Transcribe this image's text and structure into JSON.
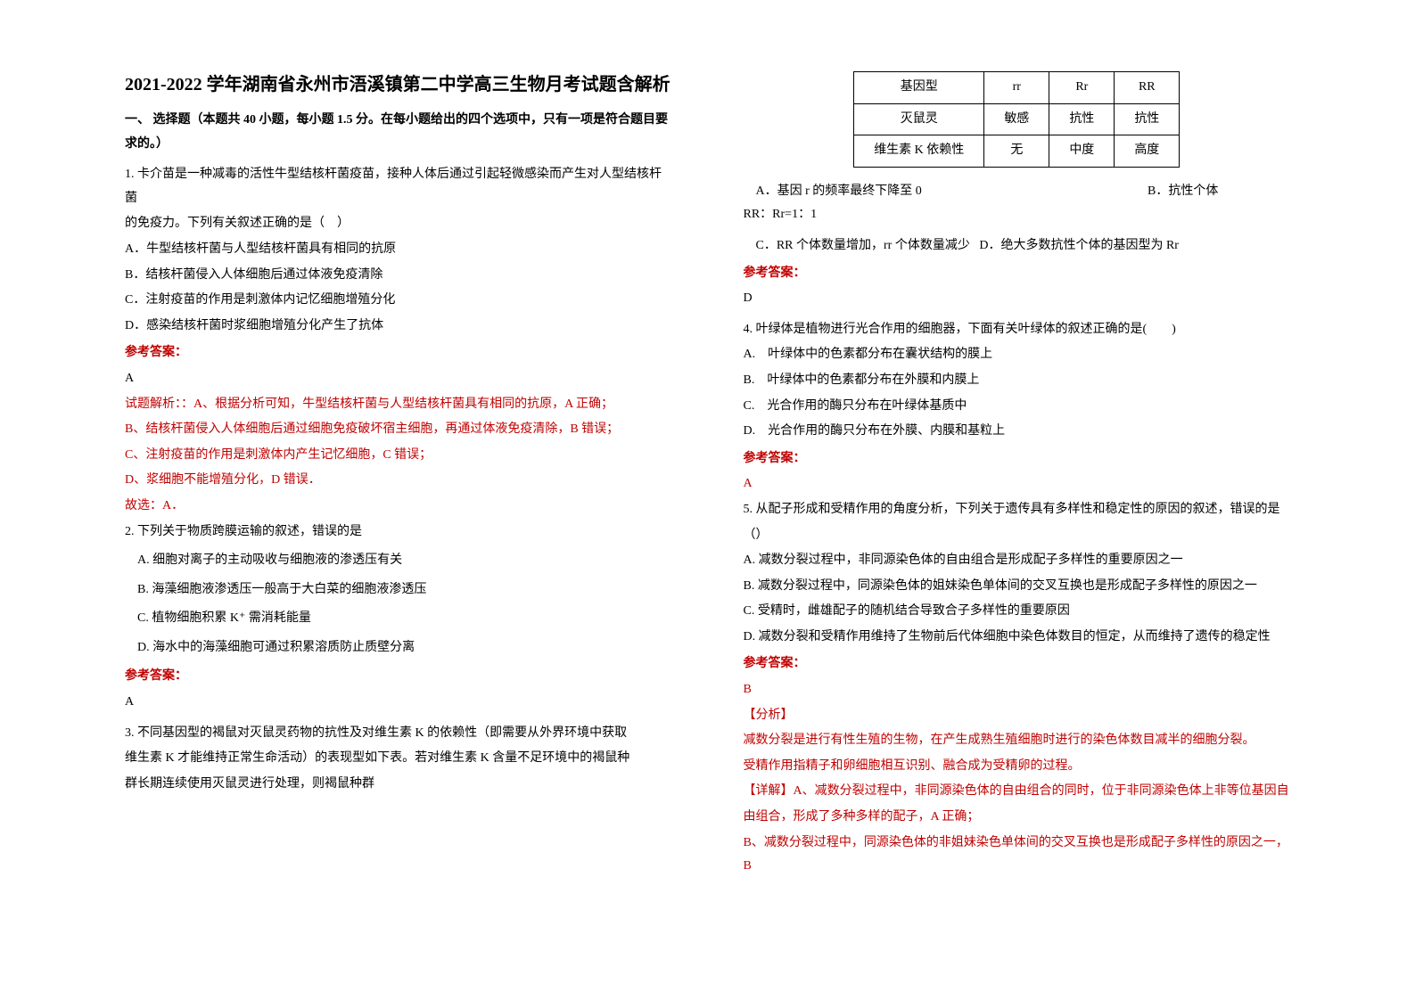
{
  "left": {
    "title": "2021-2022 学年湖南省永州市浯溪镇第二中学高三生物月考试题含解析",
    "section": "一、 选择题（本题共 40 小题，每小题 1.5 分。在每小题给出的四个选项中，只有一项是符合题目要求的。）",
    "q1": {
      "stem1": "1. 卡介苗是一种减毒的活性牛型结核杆菌疫苗，接种人体后通过引起轻微感染而产生对人型结核杆菌",
      "stem2": "的免疫力。下列有关叙述正确的是（　）",
      "A": "A．牛型结核杆菌与人型结核杆菌具有相同的抗原",
      "B": "B．结核杆菌侵入人体细胞后通过体液免疫清除",
      "C": "C．注射疫苗的作用是刺激体内记忆细胞增殖分化",
      "D": "D．感染结核杆菌时浆细胞增殖分化产生了抗体",
      "ansLabel": "参考答案：",
      "ans": "A",
      "exp0": "试题解析：：A、根据分析可知，牛型结核杆菌与人型结核杆菌具有相同的抗原，A 正确；",
      "exp1": "B、结核杆菌侵入人体细胞后通过细胞免疫破坏宿主细胞，再通过体液免疫清除，B 错误；",
      "exp2": "C、注射疫苗的作用是刺激体内产生记忆细胞，C 错误；",
      "exp3": "D、浆细胞不能增殖分化，D 错误．",
      "exp4": "故选：A．"
    },
    "q2": {
      "stem": "2. 下列关于物质跨膜运输的叙述，错误的是",
      "A": "A. 细胞对离子的主动吸收与细胞液的渗透压有关",
      "B": "B. 海藻细胞液渗透压一般高于大白菜的细胞液渗透压",
      "C": "C. 植物细胞积累 K⁺ 需消耗能量",
      "D": "D. 海水中的海藻细胞可通过积累溶质防止质壁分离",
      "ansLabel": "参考答案：",
      "ans": "A"
    },
    "q3": {
      "stem1": "3. 不同基因型的褐鼠对灭鼠灵药物的抗性及对维生素 K 的依赖性（即需要从外界环境中获取",
      "stem2": "维生素 K 才能维持正常生命活动）的表现型如下表。若对维生素 K 含量不足环境中的褐鼠种",
      "stem3": "群长期连续使用灭鼠灵进行处理，则褐鼠种群"
    }
  },
  "right": {
    "table": {
      "h1": "基因型",
      "h2": "rr",
      "h3": "Rr",
      "h4": "RR",
      "r1c1": "灭鼠灵",
      "r1c2": "敏感",
      "r1c3": "抗性",
      "r1c4": "抗性",
      "r2c1": "维生素 K 依赖性",
      "r2c2": "无",
      "r2c3": "中度",
      "r2c4": "高度"
    },
    "q3opts": {
      "A": "A．基因 r 的频率最终下降至 0",
      "B": "B．抗性个体",
      "Bline2": "RR：Rr=1：1",
      "C": "C．RR 个体数量增加，rr 个体数量减少",
      "D": "D．绝大多数抗性个体的基因型为 Rr",
      "ansLabel": "参考答案：",
      "ans": "D"
    },
    "q4": {
      "stem": "4. 叶绿体是植物进行光合作用的细胞器，下面有关叶绿体的叙述正确的是(　　)",
      "A": "A.　叶绿体中的色素都分布在囊状结构的膜上",
      "B": "B.　叶绿体中的色素都分布在外膜和内膜上",
      "C": "C.　光合作用的酶只分布在叶绿体基质中",
      "D": "D.　光合作用的酶只分布在外膜、内膜和基粒上",
      "ansLabel": "参考答案：",
      "ans": "A"
    },
    "q5": {
      "stem1": "5. 从配子形成和受精作用的角度分析，下列关于遗传具有多样性和稳定性的原因的叙述，错误的是",
      "stem2": "（）",
      "A": "A. 减数分裂过程中，非同源染色体的自由组合是形成配子多样性的重要原因之一",
      "B": "B. 减数分裂过程中，同源染色体的姐妹染色单体间的交叉互换也是形成配子多样性的原因之一",
      "C": "C. 受精时，雌雄配子的随机结合导致合子多样性的重要原因",
      "D": "D. 减数分裂和受精作用维持了生物前后代体细胞中染色体数目的恒定，从而维持了遗传的稳定性",
      "ansLabel": "参考答案：",
      "ans": "B",
      "analLabel": "【分析】",
      "anal1": "减数分裂是进行有性生殖的生物，在产生成熟生殖细胞时进行的染色体数目减半的细胞分裂。",
      "anal2": "受精作用指精子和卵细胞相互识别、融合成为受精卵的过程。",
      "det1": "【详解】A、减数分裂过程中，非同源染色体的自由组合的同时，位于非同源染色体上非等位基因自",
      "det2": "由组合，形成了多种多样的配子，A 正确；",
      "det3": "B、减数分裂过程中，同源染色体的非姐妹染色单体间的交叉互换也是形成配子多样性的原因之一，B"
    }
  }
}
